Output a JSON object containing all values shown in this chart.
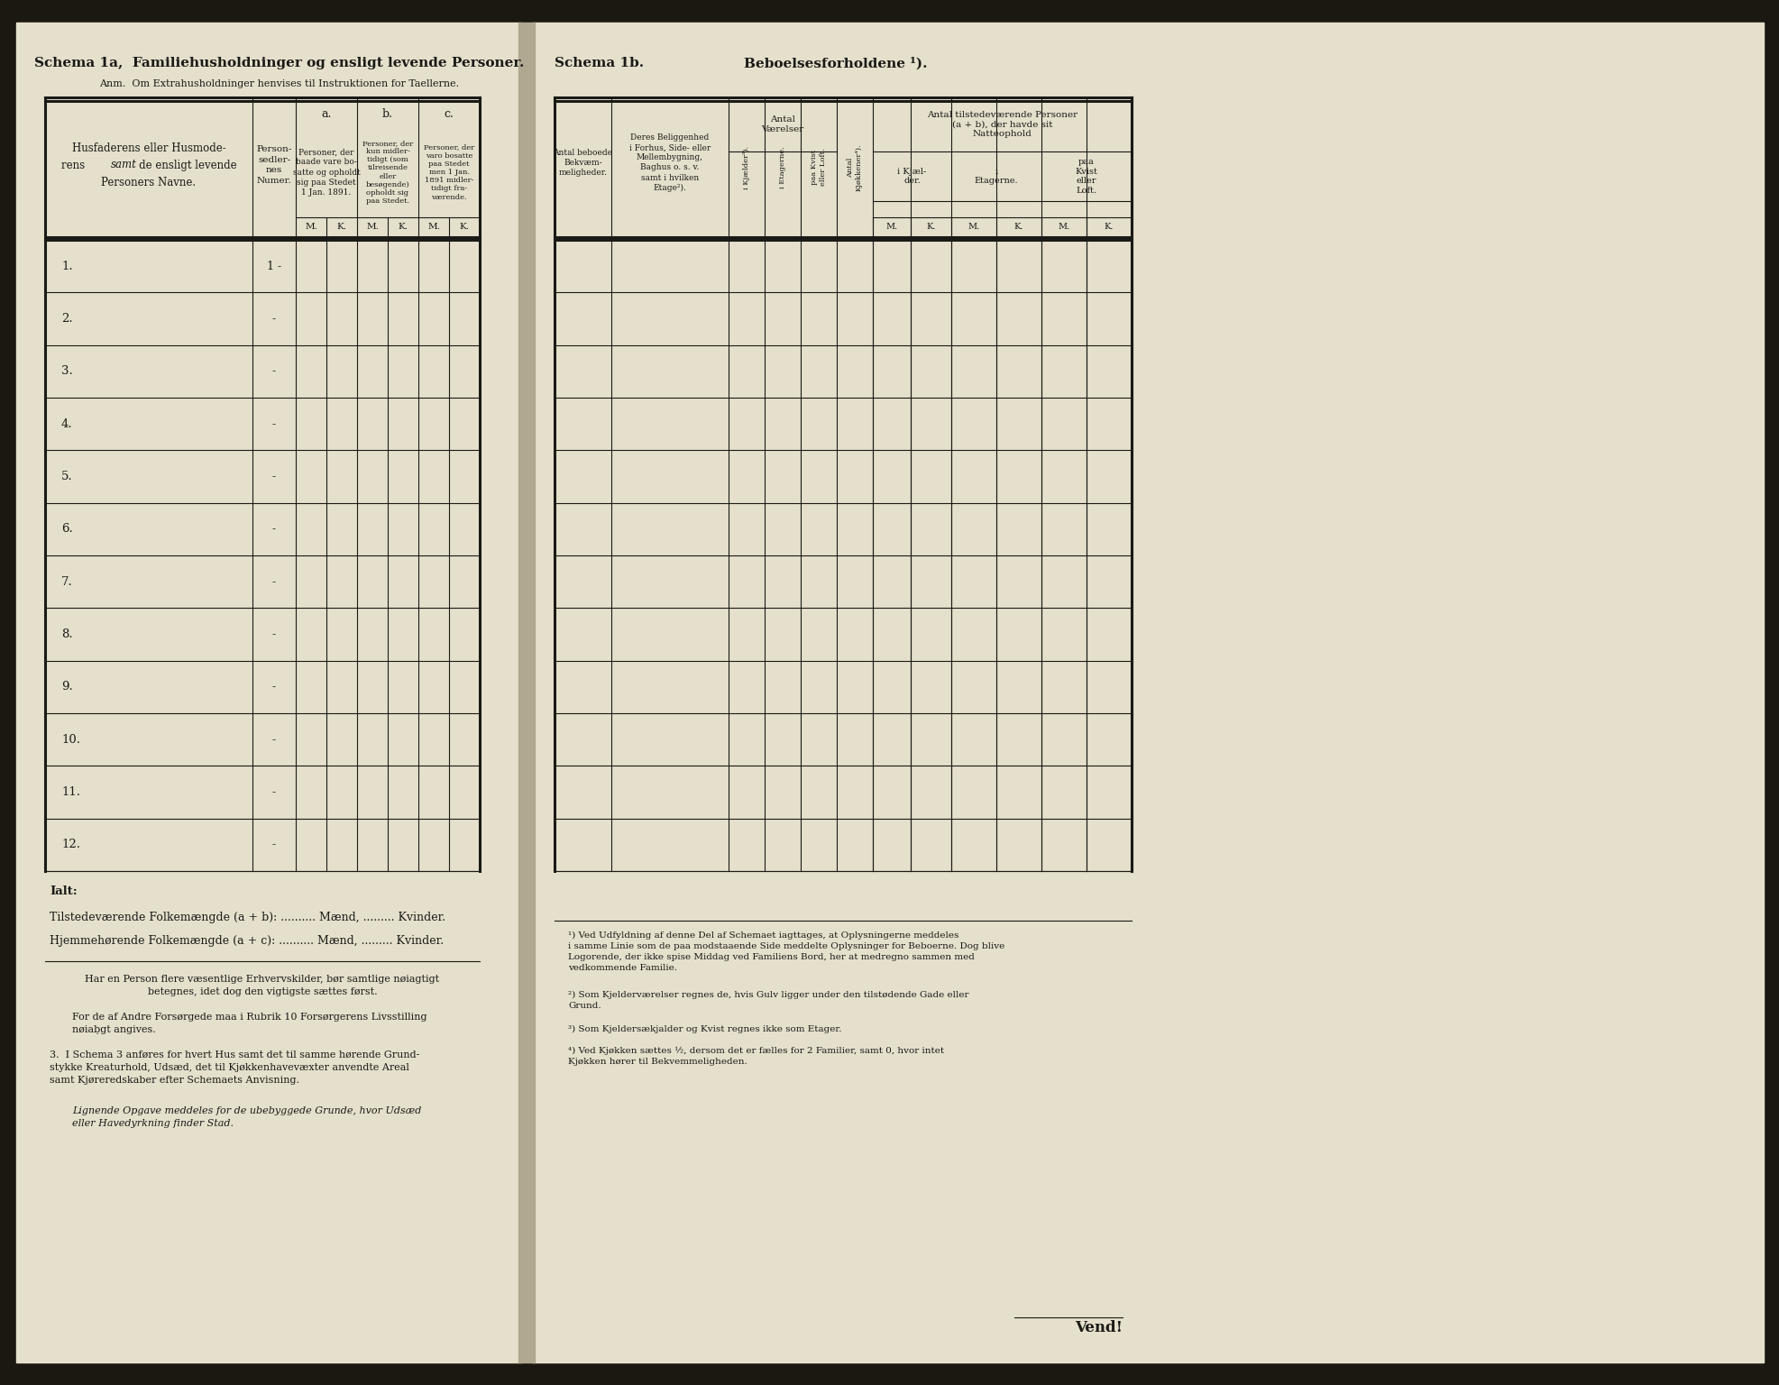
{
  "bg_paper": "#e5e0cc",
  "bg_dark": "#1a1810",
  "text_color": "#1a1a16",
  "title_1a": "Schema 1a,  Familiehusholdninger og ensligt levende Personer.",
  "anm_1a": "Anm.  Om Extrahusholdninger henvises til Instruktionen for Taellerne.",
  "title_1b": "Schema 1b.",
  "title_1b_right": "Beboelsesforholdene ¹).",
  "left_col_header_line1": "Husfaderens eller Husmode-",
  "left_col_header_line2": "rens samt de ensligt levende",
  "left_col_header_line3": "Personers Navne.",
  "col_a_header": "a.",
  "col_b_header": "b.",
  "col_c_header": "c.",
  "col_a_text": "Personer, der\nbaade vare bo-\nsatte og opholdt\nsig paa Stedet\n1 Jan. 1891.",
  "col_b_text": "Personer, der\nkun midler-\ntidigt (som\ntilreisende\neller\nbesøgende)\nopholdt sig\npaa Stedet.",
  "col_c_text": "Personer, der\nvaro bosatte\npaa Stedet\nmen 1 Jan.\n1891 midler-\ntidigt fra-\nværende.",
  "personsedler_header": "Person-\nsedler-\nnes\nNumer.",
  "row_labels": [
    "1.",
    "2.",
    "3.",
    "4.",
    "5.",
    "6.",
    "7.",
    "8.",
    "9.",
    "10.",
    "11.",
    "12."
  ],
  "ialt_label": "Ialt:",
  "tilstedev": "Tilstedeværende Folkemængde (a + b): .......... Mænd, ......... Kvinder.",
  "hjemmehoerende": "Hjemmehørende Folkemængde (a + c): .......... Mænd, ......... Kvinder.",
  "footnote_1": "Har en Person flere væsentlige Erhvervskilder, bør samtlige nøiagtigt\nbetegnes, idet dog den vigtigste sættes først.",
  "footnote_2": "For de af Andre Forsørgede maa i Rubrik 10 Forsørgerens Livsstilling\nnøiaḅgt angives.",
  "footnote_3": "3.  I Schema 3 anføres for hvert Hus samt det til samme hørende Grund-\nstykke Kreaturhold, Udsæd, det til Kjøkkenhavevæxter anvendte Areal\nsamt Kjøreredskaber efter Schemaets Anvisning.",
  "footnote_4": "Lignende Opgave meddeles for de ubebyggede Grunde, hvor Udsæd\neller Havedyrkning finder Stad.",
  "rfn1": "¹) Ved Udfyldning af denne Del af Schemaet iagttages, at Oplysningerne meddeles\ni samme Linie som de paa modstaaende Side meddelte Oplysninger for Beboerne. Dog blive\nLogorende, der ikke spise Middag ved Familiens Bord, her at medregno sammen med\nvedkommende Familie.",
  "rfn2": "²) Som Kjelderværelser regnes de, hvis Gulv ligger under den tilstødende Gade eller\nGrund.",
  "rfn3": "³) Som Kjeldersækjalder og Kvist regnes ikke som Etager.",
  "rfn4": "⁴) Ved Kjøkken sættes ½, dersom det er fælles for 2 Familier, samt 0, hvor intet\nKjøkken hører til Bekvemmeligheden.",
  "vend": "Vend!"
}
